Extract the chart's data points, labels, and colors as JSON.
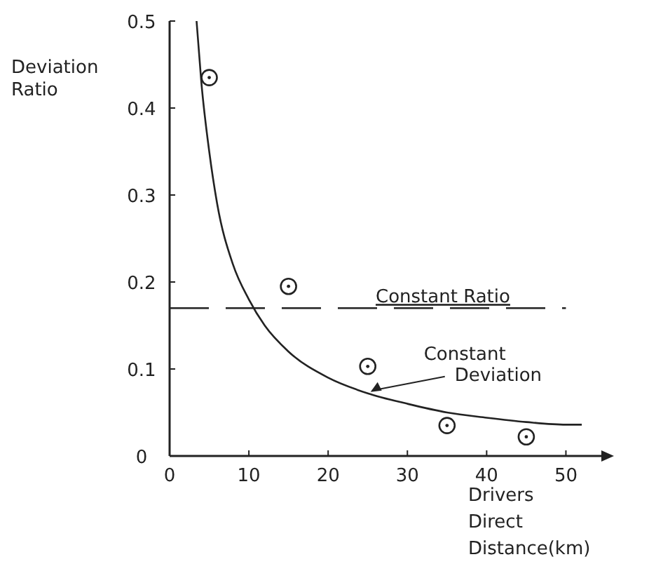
{
  "chart_data": {
    "type": "line",
    "xlabel": "Drivers Direct Distance(km)",
    "ylabel": "Deviation Ratio",
    "xlim": [
      0,
      55
    ],
    "xticks": [
      0,
      10,
      20,
      30,
      40,
      50
    ],
    "ylim": [
      0,
      0.5
    ],
    "yticks": [
      0,
      0.1,
      0.2,
      0.3,
      0.4,
      0.5
    ],
    "grid": false,
    "series": [
      {
        "name": "Constant Deviation",
        "color": "#222222",
        "line_style": "solid",
        "x": [
          3.4,
          4,
          5,
          6,
          8,
          10,
          12,
          15,
          20,
          25,
          30,
          35,
          40,
          45,
          50,
          52
        ],
        "values": [
          0.5,
          0.43,
          0.35,
          0.29,
          0.22,
          0.18,
          0.15,
          0.12,
          0.09,
          0.072,
          0.06,
          0.05,
          0.044,
          0.039,
          0.036,
          0.036
        ]
      },
      {
        "type": "scatter",
        "color": "#222222",
        "marker": "circle",
        "x": [
          5,
          15,
          25,
          35,
          45
        ],
        "values": [
          0.435,
          0.195,
          0.103,
          0.035,
          0.022
        ]
      }
    ],
    "ref_lines": [
      {
        "axis": "y",
        "value": 0.17,
        "label": "Constant Ratio",
        "line_style": "dashed",
        "color": "#222222"
      }
    ]
  }
}
